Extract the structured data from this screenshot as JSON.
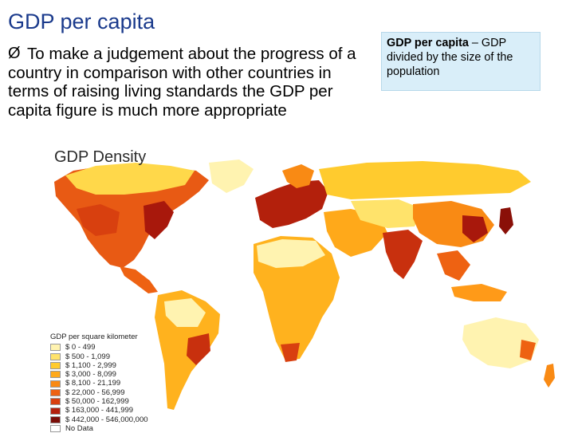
{
  "slide": {
    "title": "GDP per capita",
    "bullet_arrow": "Ø",
    "bullet_text": "To make a judgement about the progress of a country in comparison with other countries in terms of raising living standards the GDP per capita figure is much more appropriate"
  },
  "definition": {
    "term": "GDP per capita",
    "separator": " – ",
    "text": "GDP divided by the size of the population"
  },
  "map": {
    "title": "GDP Density",
    "legend_title": "GDP per square kilometer",
    "legend": [
      {
        "label": "$ 0 - 499",
        "color": "#fff3b0"
      },
      {
        "label": "$ 500 - 1,099",
        "color": "#ffe36b"
      },
      {
        "label": "$ 1,100 - 2,999",
        "color": "#ffcb2e"
      },
      {
        "label": "$ 3,000 - 8,099",
        "color": "#ffa91a"
      },
      {
        "label": "$ 8,100 - 21,199",
        "color": "#f98a14"
      },
      {
        "label": "$ 22,000 - 56,999",
        "color": "#ee6212"
      },
      {
        "label": "$ 50,000 - 162,999",
        "color": "#d8400f"
      },
      {
        "label": "$ 163,000 - 441,999",
        "color": "#b3200c"
      },
      {
        "label": "$ 442,000 - 546,000,000",
        "color": "#7a0d07"
      },
      {
        "label": "No Data",
        "color": "#ffffff"
      }
    ]
  }
}
